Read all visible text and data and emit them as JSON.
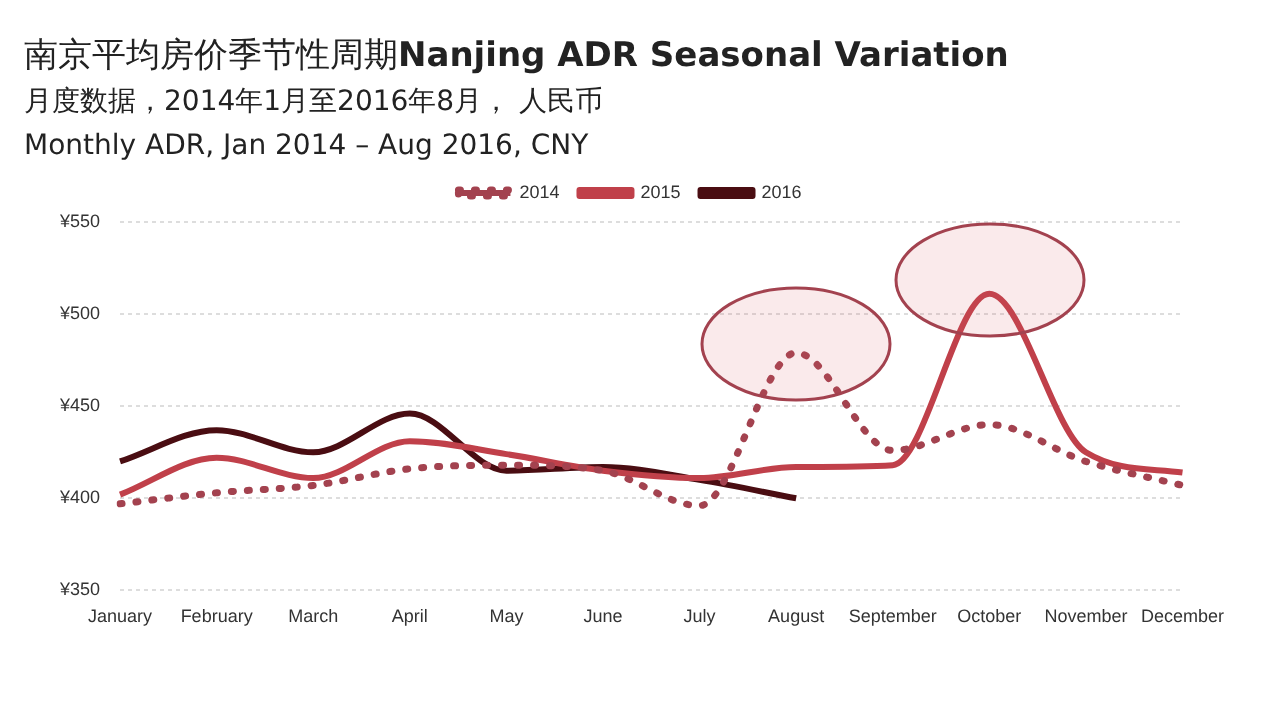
{
  "chart_data": {
    "type": "line",
    "title": "南京平均房价季节性周期Nanjing ADR Seasonal Variation",
    "subtitle": "月度数据，2014年1月至2016年8月， 人民币\nMonthly ADR, Jan 2014 – Aug 2016, CNY",
    "categories": [
      "January",
      "February",
      "March",
      "April",
      "May",
      "June",
      "July",
      "August",
      "September",
      "October",
      "November",
      "December"
    ],
    "series": [
      {
        "name": "2014",
        "color": "#a3424f",
        "line_style": "dotted",
        "values": [
          397,
          403,
          407,
          416,
          418,
          415,
          396,
          479,
          426,
          440,
          420,
          407
        ]
      },
      {
        "name": "2015",
        "color": "#c0404a",
        "line_style": "solid",
        "values": [
          402,
          422,
          411,
          431,
          424,
          415,
          411,
          417,
          418,
          511,
          425,
          414
        ]
      },
      {
        "name": "2016",
        "color": "#4a0d12",
        "line_style": "solid",
        "values": [
          420,
          437,
          425,
          446,
          415,
          417,
          410,
          400,
          null,
          null,
          null,
          null
        ]
      }
    ],
    "ylim": [
      350,
      550
    ],
    "yticks": [
      {
        "value": 350,
        "label": "¥350"
      },
      {
        "value": 400,
        "label": "¥400"
      },
      {
        "value": 450,
        "label": "¥450"
      },
      {
        "value": 500,
        "label": "¥500"
      },
      {
        "value": 550,
        "label": "¥550"
      }
    ],
    "grid": "y",
    "legend": "top",
    "marker": "none"
  }
}
